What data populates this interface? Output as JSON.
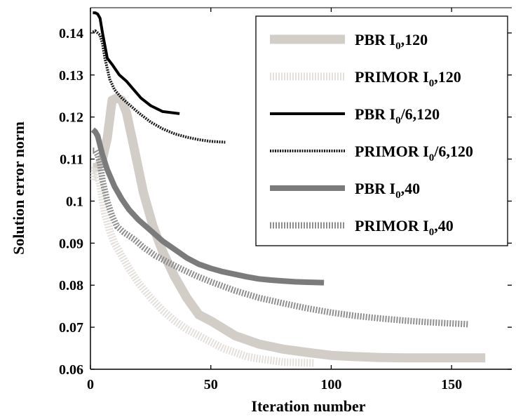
{
  "chart_data": {
    "type": "line",
    "xlabel": "Iteration number",
    "ylabel": "Solution error norm",
    "xlim": [
      0,
      175
    ],
    "ylim": [
      0.06,
      0.146
    ],
    "xticks": [
      0,
      50,
      100,
      150
    ],
    "yticks": [
      0.06,
      0.07,
      0.08,
      0.09,
      0.1,
      0.11,
      0.12,
      0.13,
      0.14
    ],
    "xtick_labels": [
      "0",
      "50",
      "100",
      "150"
    ],
    "ytick_labels": [
      "0.06",
      "0.07",
      "0.08",
      "0.09",
      "0.1",
      "0.11",
      "0.12",
      "0.13",
      "0.14"
    ],
    "grid": false,
    "legend_position": "top-right",
    "series": [
      {
        "name_main": "PBR I",
        "name_sub": "0",
        "name_rest": ",120",
        "color": "#d2cdc6",
        "style": "solid",
        "width": 13,
        "x": [
          1,
          3,
          5,
          7,
          9,
          11,
          13,
          15,
          18,
          22,
          26,
          30,
          35,
          40,
          45,
          50,
          60,
          70,
          80,
          90,
          100,
          110,
          120,
          130,
          140,
          150,
          164
        ],
        "y": [
          0.108,
          0.108,
          0.11,
          0.115,
          0.124,
          0.1245,
          0.124,
          0.121,
          0.113,
          0.102,
          0.094,
          0.088,
          0.082,
          0.077,
          0.073,
          0.0715,
          0.068,
          0.066,
          0.0648,
          0.064,
          0.0633,
          0.063,
          0.0628,
          0.0627,
          0.0627,
          0.0627,
          0.0627
        ]
      },
      {
        "name_main": "PRIMOR I",
        "name_sub": "0",
        "name_rest": ",120",
        "color": "#e3dfda",
        "style": "hatched",
        "width": 11,
        "x": [
          1,
          2,
          3,
          4,
          6,
          8,
          10,
          13,
          16,
          20,
          25,
          30,
          35,
          40,
          45,
          50,
          55,
          60,
          65,
          70,
          80,
          93
        ],
        "y": [
          0.105,
          0.108,
          0.106,
          0.104,
          0.097,
          0.093,
          0.09,
          0.087,
          0.084,
          0.0805,
          0.077,
          0.074,
          0.0715,
          0.0695,
          0.068,
          0.0665,
          0.065,
          0.064,
          0.063,
          0.0625,
          0.0617,
          0.0615
        ]
      },
      {
        "name_main": "PBR I",
        "name_sub": "0",
        "name_rest": "/6,120",
        "color": "#000000",
        "style": "solid",
        "width": 4,
        "x": [
          1,
          2,
          3,
          4,
          5,
          7,
          9,
          12,
          15,
          18,
          21,
          25,
          30,
          37
        ],
        "y": [
          0.1448,
          0.1448,
          0.1445,
          0.1435,
          0.14,
          0.134,
          0.1325,
          0.13,
          0.1285,
          0.1265,
          0.1245,
          0.1227,
          0.1213,
          0.1208
        ]
      },
      {
        "name_main": "PRIMOR I",
        "name_sub": "0",
        "name_rest": "/6,120",
        "color": "#1a1a1a",
        "style": "dotted",
        "width": 4,
        "x": [
          1,
          2,
          3,
          4,
          5,
          6,
          8,
          10,
          13,
          16,
          20,
          25,
          30,
          35,
          40,
          45,
          50,
          56
        ],
        "y": [
          0.1402,
          0.1405,
          0.14,
          0.1395,
          0.1375,
          0.134,
          0.129,
          0.1265,
          0.1245,
          0.123,
          0.121,
          0.1188,
          0.1172,
          0.116,
          0.1152,
          0.1146,
          0.1142,
          0.114
        ]
      },
      {
        "name_main": "PBR I",
        "name_sub": "0",
        "name_rest": ",40",
        "color": "#7b7b7b",
        "style": "solid",
        "width": 8,
        "x": [
          1,
          2,
          3,
          5,
          7,
          10,
          13,
          16,
          20,
          25,
          30,
          35,
          40,
          45,
          50,
          55,
          60,
          65,
          70,
          75,
          80,
          85,
          90,
          97
        ],
        "y": [
          0.117,
          0.1165,
          0.1155,
          0.111,
          0.1075,
          0.1035,
          0.1005,
          0.098,
          0.0955,
          0.093,
          0.0905,
          0.0885,
          0.0865,
          0.085,
          0.084,
          0.0832,
          0.0826,
          0.082,
          0.0815,
          0.0812,
          0.081,
          0.0808,
          0.0807,
          0.0806
        ]
      },
      {
        "name_main": "PRIMOR I",
        "name_sub": "0",
        "name_rest": ",40",
        "color": "#8e8e8e",
        "style": "hatched",
        "width": 9,
        "x": [
          1,
          2,
          3,
          4,
          5,
          7,
          9,
          11,
          14,
          18,
          22,
          27,
          32,
          38,
          44,
          50,
          60,
          70,
          80,
          90,
          100,
          110,
          120,
          130,
          140,
          150,
          157
        ],
        "y": [
          0.112,
          0.112,
          0.111,
          0.109,
          0.105,
          0.1,
          0.0965,
          0.094,
          0.0925,
          0.091,
          0.089,
          0.087,
          0.0855,
          0.0838,
          0.0822,
          0.0808,
          0.0787,
          0.077,
          0.0757,
          0.0745,
          0.0735,
          0.0727,
          0.0721,
          0.0716,
          0.0712,
          0.0709,
          0.0707
        ]
      }
    ]
  }
}
